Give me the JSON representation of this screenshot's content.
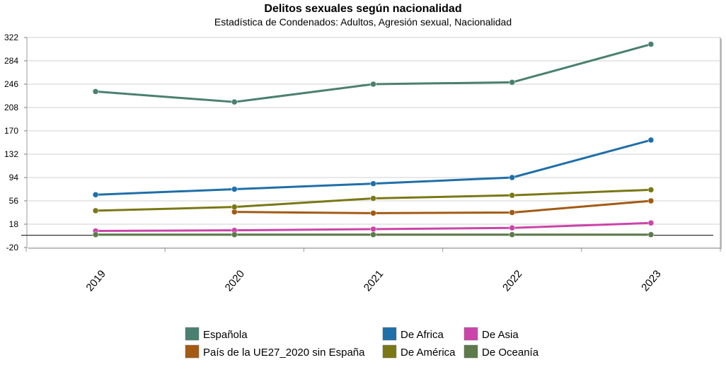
{
  "chart_data": {
    "type": "line",
    "title": "Delitos sexuales según nacionalidad",
    "subtitle": "Estadística de Condenados: Adultos, Agresión sexual, Nacionalidad",
    "xlabel": "",
    "ylabel": "",
    "ylim": [
      -20,
      322
    ],
    "yticks": [
      "322",
      "284",
      "246",
      "208",
      "170",
      "132",
      "94",
      "56",
      "18",
      "-20"
    ],
    "ytick_values": [
      322,
      284,
      246,
      208,
      170,
      132,
      94,
      56,
      18,
      -20
    ],
    "categories": [
      "2019",
      "2020",
      "2021",
      "2022",
      "2023"
    ],
    "grid": true,
    "legend_position": "bottom",
    "series": [
      {
        "name": "Española",
        "color": "#4a8070",
        "values": [
          234,
          217,
          246,
          249,
          311
        ]
      },
      {
        "name": "De Africa",
        "color": "#1f6fa8",
        "values": [
          66,
          75,
          84,
          94,
          155
        ]
      },
      {
        "name": "De Asia",
        "color": "#cc44aa",
        "values": [
          7,
          8,
          10,
          12,
          20
        ]
      },
      {
        "name": "País de la UE27_2020 sin España",
        "color": "#a35a12",
        "values": [
          null,
          38,
          36,
          37,
          56
        ]
      },
      {
        "name": "De América",
        "color": "#7a7814",
        "values": [
          40,
          46,
          60,
          65,
          74
        ]
      },
      {
        "name": "De Oceanía",
        "color": "#5c7a4a",
        "values": [
          1,
          1,
          1,
          1,
          1
        ]
      }
    ]
  }
}
